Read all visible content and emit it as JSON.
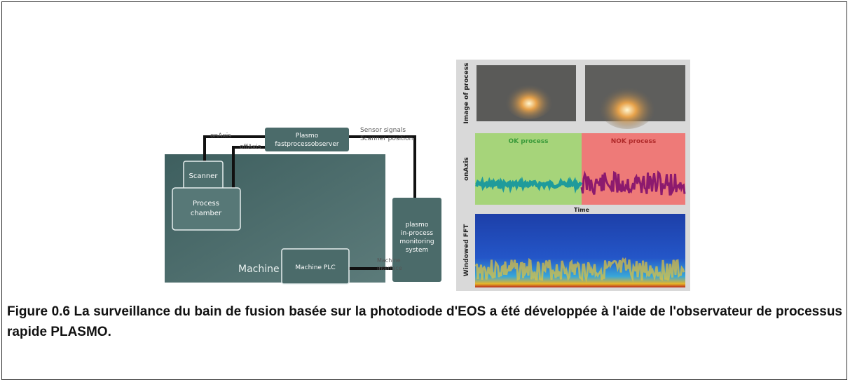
{
  "figure": {
    "diagram": {
      "machine": "Machine",
      "scanner": "Scanner",
      "process_chamber": [
        "Process",
        "chamber"
      ],
      "observer": [
        "Plasmo",
        "fastprocessobserver"
      ],
      "machine_plc": "Machine PLC",
      "monitoring": [
        "plasmo",
        "in-process",
        "monitoring",
        "system"
      ],
      "on_axis": "onAxis",
      "off_axis": "offAxis",
      "sensor": [
        "Sensor signals",
        "Scanner position"
      ],
      "interface": [
        "Machine",
        "interface"
      ]
    },
    "panel": {
      "image_label": "Image of process",
      "signal_label": "onAxis",
      "fft_label": "Windowed FFT",
      "ok": "OK process",
      "nok": "NOK process",
      "time": "Time"
    }
  },
  "caption": "Figure 0.6 La surveillance du bain de fusion basée sur la photodiode d'EOS a été développée à l'aide de l'observateur de processus rapide PLASMO."
}
